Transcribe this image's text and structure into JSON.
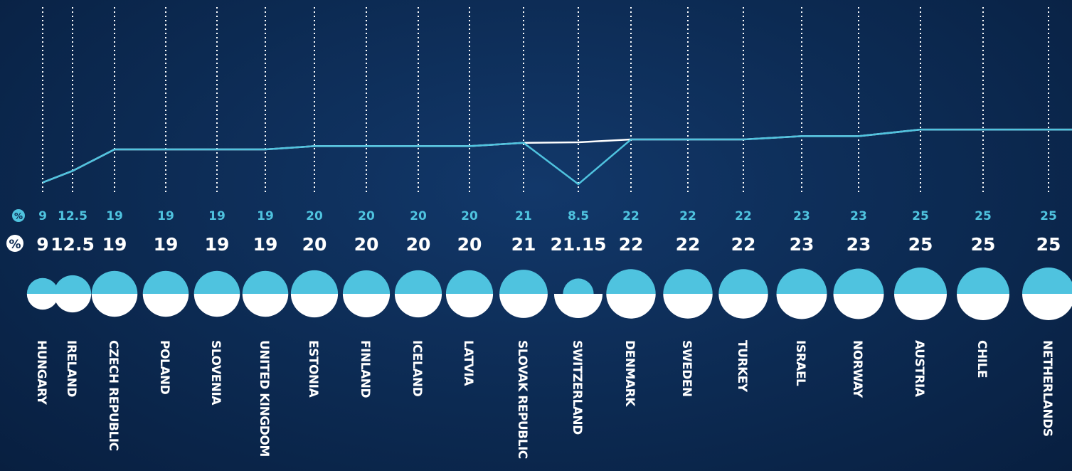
{
  "colors": {
    "background": "#0c2a52",
    "cyan": "#4fc3df",
    "white": "#ffffff"
  },
  "percent_symbol": "%",
  "chart_data": {
    "type": "line",
    "categories": [
      "HUNGARY",
      "IRELAND",
      "CZECH REPUBLIC",
      "POLAND",
      "SLOVENIA",
      "UNITED KINGDOM",
      "ESTONIA",
      "FINLAND",
      "ICELAND",
      "LATVIA",
      "SLOVAK REPUBLIC",
      "SWITZERLAND",
      "DENMARK",
      "SWEDEN",
      "TURKEY",
      "ISRAEL",
      "NORWAY",
      "AUSTRIA",
      "CHILE",
      "NETHERLANDS"
    ],
    "series": [
      {
        "color": "#4fc3df",
        "values": [
          9,
          12.5,
          19,
          19,
          19,
          19,
          20,
          20,
          20,
          20,
          21,
          8.5,
          22,
          22,
          22,
          23,
          23,
          25,
          25,
          25
        ],
        "labels": [
          "9",
          "12.5",
          "19",
          "19",
          "19",
          "19",
          "20",
          "20",
          "20",
          "20",
          "21",
          "8.5",
          "22",
          "22",
          "22",
          "23",
          "23",
          "25",
          "25",
          "25"
        ]
      },
      {
        "color": "#ffffff",
        "values": [
          9,
          12.5,
          19,
          19,
          19,
          19,
          20,
          20,
          20,
          20,
          21,
          21.15,
          22,
          22,
          22,
          23,
          23,
          25,
          25,
          25
        ],
        "labels": [
          "9",
          "12.5",
          "19",
          "19",
          "19",
          "19",
          "20",
          "20",
          "20",
          "20",
          "21",
          "21.15",
          "22",
          "22",
          "22",
          "23",
          "23",
          "25",
          "25",
          "25"
        ]
      }
    ],
    "grid": true
  }
}
